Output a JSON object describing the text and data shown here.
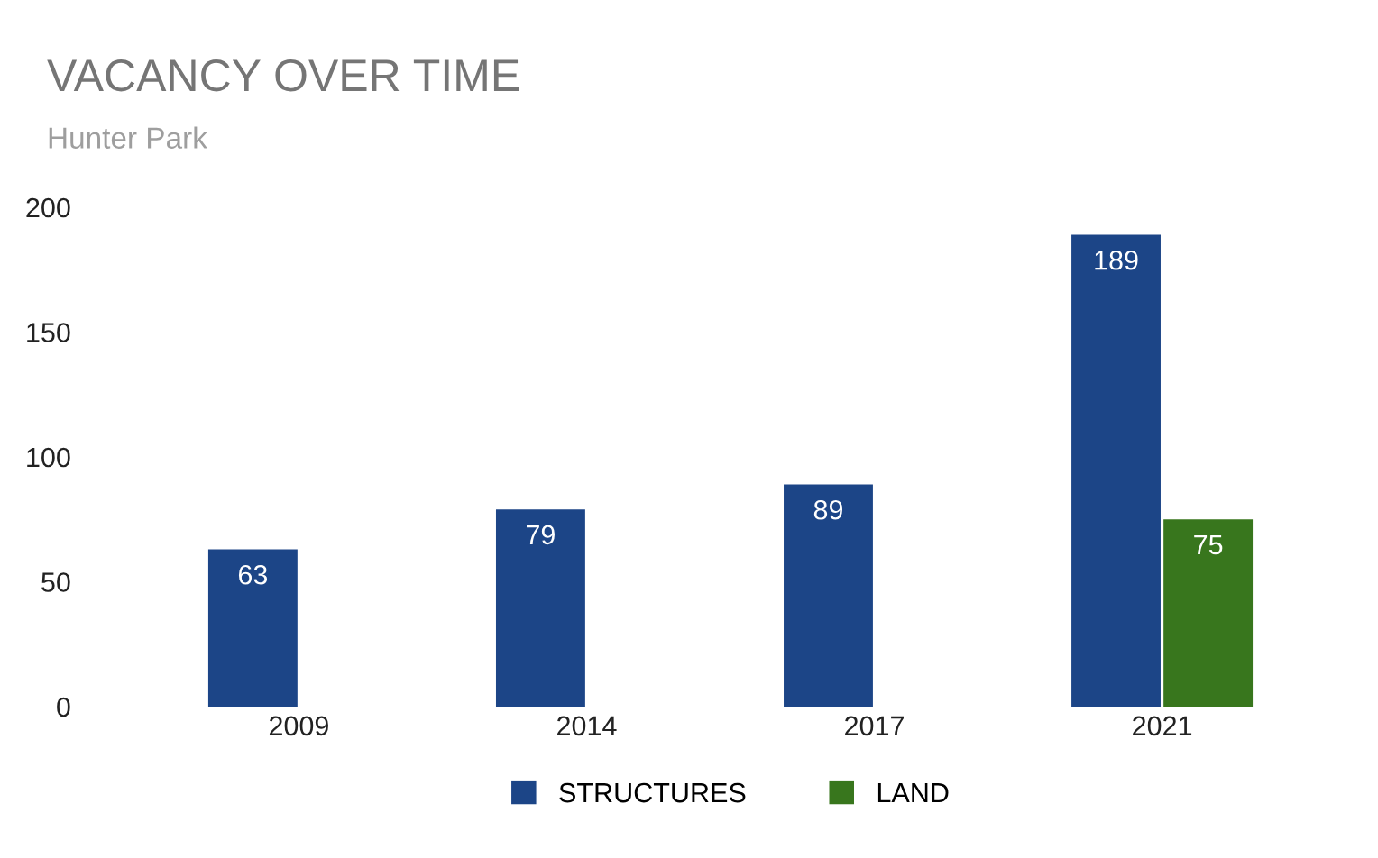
{
  "chart_data": {
    "type": "bar",
    "title": "VACANCY OVER TIME",
    "subtitle": "Hunter Park",
    "categories": [
      "2009",
      "2014",
      "2017",
      "2021"
    ],
    "series": [
      {
        "name": "STRUCTURES",
        "color": "#1c4587",
        "values": [
          63,
          79,
          89,
          189
        ]
      },
      {
        "name": "LAND",
        "color": "#38761d",
        "values": [
          null,
          null,
          null,
          75
        ]
      }
    ],
    "ylim": [
      0,
      200
    ],
    "yticks": [
      0,
      50,
      100,
      150,
      200
    ],
    "grid": false,
    "legend": "bottom",
    "data_labels": true
  }
}
